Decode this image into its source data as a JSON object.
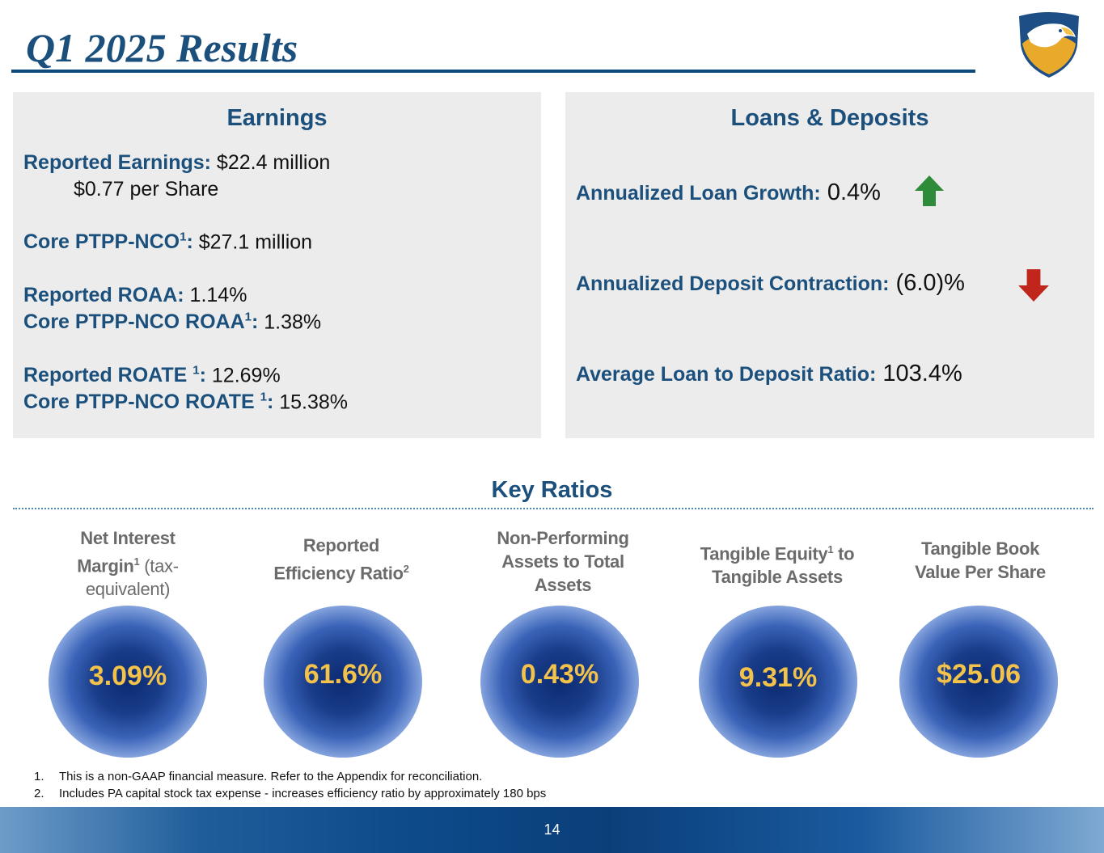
{
  "title": "Q1 2025 Results",
  "colors": {
    "brand": "#1b4f7c",
    "panel": "#ececec",
    "up": "#2e8b3a",
    "down": "#c0261c",
    "ratio_value": "#f2c24a"
  },
  "earnings": {
    "heading": "Earnings",
    "reported_earnings_label": "Reported Earnings:",
    "reported_earnings_value": " $22.4 million",
    "per_share": "$0.77 per Share",
    "core_ptpp_label": "Core PTPP-NCO",
    "core_ptpp_sup": "1",
    "core_ptpp_colon": ":",
    "core_ptpp_value": " $27.1 million",
    "reported_roaa_label": "Reported ROAA:",
    "reported_roaa_value": " 1.14%",
    "core_roaa_label": "Core PTPP-NCO ROAA",
    "core_roaa_sup": "1",
    "core_roaa_colon": ":",
    "core_roaa_value": " 1.38%",
    "reported_roate_label": "Reported ROATE ",
    "reported_roate_sup": "1",
    "reported_roate_colon": ":",
    "reported_roate_value": " 12.69%",
    "core_roate_label": "Core PTPP-NCO ROATE ",
    "core_roate_sup": "1",
    "core_roate_colon": ":",
    "core_roate_value": " 15.38%"
  },
  "loans": {
    "heading": "Loans & Deposits",
    "loan_growth_label": "Annualized Loan Growth:",
    "loan_growth_value": " 0.4%",
    "deposit_label": "Annualized Deposit Contraction:",
    "deposit_value": " (6.0)%",
    "ratio_label": "Average Loan to Deposit Ratio:",
    "ratio_value": " 103.4%"
  },
  "key_ratios": {
    "heading": "Key Ratios",
    "nim": {
      "line1": "Net Interest",
      "line2a": "Margin",
      "sup": "1",
      "line2b": " (tax-",
      "line3": "equivalent)",
      "value": "3.09%"
    },
    "eff": {
      "line1": "Reported",
      "line2": "Efficiency Ratio",
      "sup": "2",
      "value": "61.6%"
    },
    "npa": {
      "line1": "Non-Performing",
      "line2": "Assets to Total",
      "line3": "Assets",
      "value": "0.43%"
    },
    "te": {
      "line1a": "Tangible Equity",
      "sup": "1",
      "line1b": " to",
      "line2": "Tangible Assets",
      "value": "9.31%"
    },
    "tbv": {
      "line1": "Tangible Book",
      "line2": "Value Per Share",
      "value": "$25.06"
    }
  },
  "footnotes": [
    {
      "n": "1.",
      "text": "This is a non-GAAP financial measure. Refer to the Appendix for reconciliation."
    },
    {
      "n": "2.",
      "text": "Includes PA capital stock tax expense - increases efficiency ratio by approximately 180 bps"
    }
  ],
  "page_number": "14"
}
